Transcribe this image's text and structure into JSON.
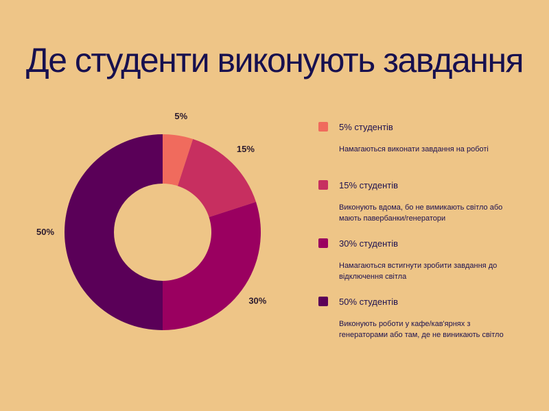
{
  "title": "Де студенти виконують завдання",
  "chart_data": {
    "type": "pie",
    "donut": true,
    "categories": [
      "5% студентів",
      "15% студентів",
      "30% студентів",
      "50% студентів"
    ],
    "values": [
      5,
      15,
      30,
      50
    ],
    "slice_labels": [
      "5%",
      "15%",
      "30%",
      "50%"
    ],
    "colors": [
      "#F06B5D",
      "#C72F60",
      "#9A0060",
      "#5A0058"
    ],
    "legend_placement": "right"
  },
  "legend": {
    "items": [
      {
        "label": "5% студентів",
        "description": "Намагаються виконати завдання на роботі",
        "color": "#F06B5D"
      },
      {
        "label": "15% студентів",
        "description": "Виконують вдома, бо не вимикають світло або мають павербанки/генератори",
        "color": "#C72F60"
      },
      {
        "label": "30% студентів",
        "description": "Намагаються встигнути зробити завдання до відключення світла",
        "color": "#9A0060"
      },
      {
        "label": "50% студентів",
        "description": "Виконують роботи у кафе/кав'ярнях з генераторами або там, де не виникають світло",
        "color": "#5A0058"
      }
    ]
  }
}
